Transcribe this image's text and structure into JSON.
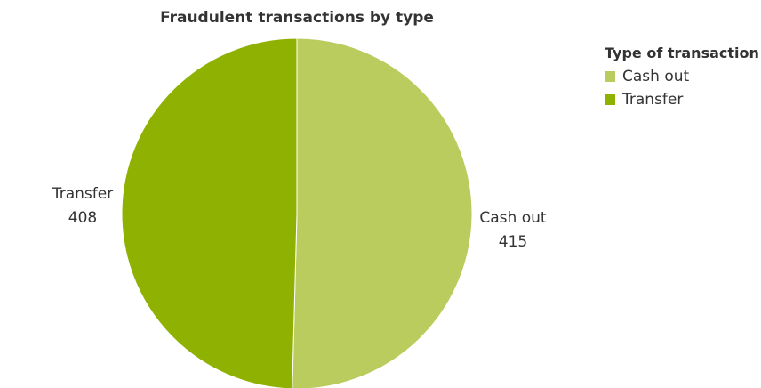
{
  "chart_data": {
    "type": "pie",
    "title": "Fraudulent transactions by type",
    "legend_title": "Type of transaction",
    "legend_position": "top-right",
    "slices": [
      {
        "label": "Cash out",
        "value": 415,
        "color": "#bacc5e"
      },
      {
        "label": "Transfer",
        "value": 408,
        "color": "#8fb101"
      }
    ]
  }
}
